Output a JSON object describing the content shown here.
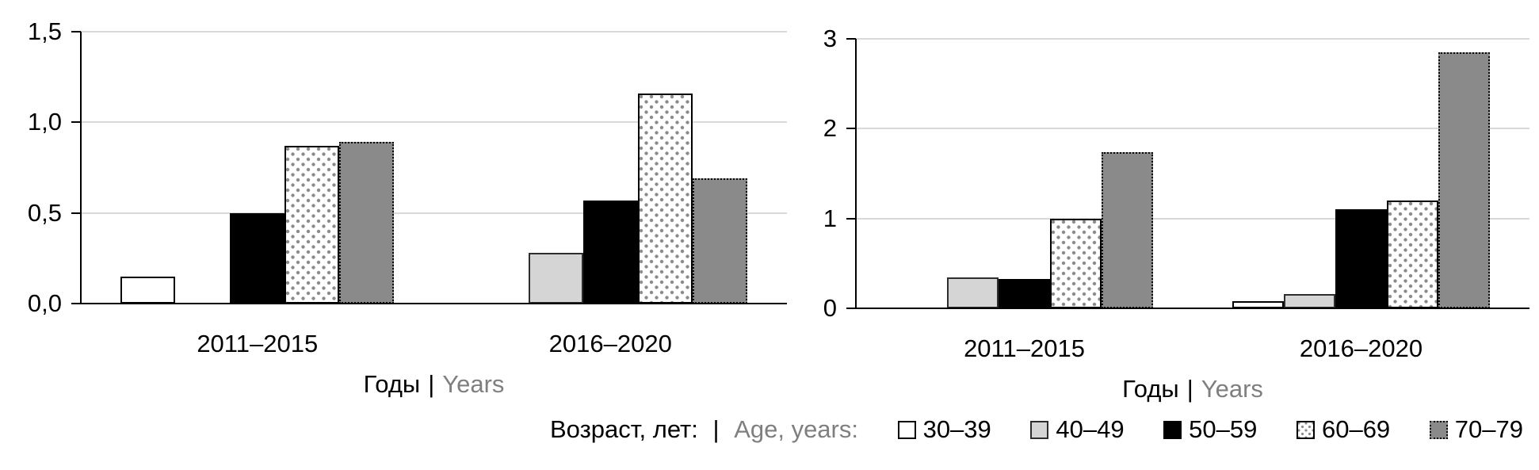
{
  "figure": {
    "background": "#ffffff",
    "colors": {
      "gridline": "#d9d9d9",
      "axis": "#000000",
      "text_primary": "#000000",
      "text_secondary": "#7f7f7f",
      "fill_white": "#ffffff",
      "fill_lightgray": "#d5d5d5",
      "fill_black": "#000000",
      "fill_dotted_dot": "#8a8a8a",
      "fill_gray": "#8a8a8a"
    }
  },
  "legend": {
    "title_ru": "Возраст, лет:",
    "separator": "|",
    "title_en": "Age, years:",
    "items": [
      {
        "label": "30–39",
        "style": "white"
      },
      {
        "label": "40–49",
        "style": "lightgray"
      },
      {
        "label": "50–59",
        "style": "black"
      },
      {
        "label": "60–69",
        "style": "dotted"
      },
      {
        "label": "70–79",
        "style": "gray"
      }
    ]
  },
  "chart_data": [
    {
      "type": "bar",
      "title": "",
      "categories": [
        "2011–2015",
        "2016–2020"
      ],
      "series": [
        {
          "name": "30–39",
          "style": "white",
          "values": [
            0.15,
            0
          ]
        },
        {
          "name": "40–49",
          "style": "lightgray",
          "values": [
            0,
            0.28
          ]
        },
        {
          "name": "50–59",
          "style": "black",
          "values": [
            0.5,
            0.57
          ]
        },
        {
          "name": "60–69",
          "style": "dotted",
          "values": [
            0.87,
            1.16
          ]
        },
        {
          "name": "70–79",
          "style": "gray",
          "values": [
            0.89,
            0.69
          ]
        }
      ],
      "xlabel_ru": "Годы",
      "xlabel_sep": "|",
      "xlabel_en": "Years",
      "ylim": [
        0,
        1.5
      ],
      "yticks_top_to_bottom": [
        "1,5",
        "1,0",
        "0,5",
        "0,0"
      ],
      "grid": true,
      "legend_position": "shared-bottom"
    },
    {
      "type": "bar",
      "title": "",
      "categories": [
        "2011–2015",
        "2016–2020"
      ],
      "series": [
        {
          "name": "30–39",
          "style": "white",
          "values": [
            0,
            0.08
          ]
        },
        {
          "name": "40–49",
          "style": "lightgray",
          "values": [
            0.34,
            0.16
          ]
        },
        {
          "name": "50–59",
          "style": "black",
          "values": [
            0.33,
            1.1
          ]
        },
        {
          "name": "60–69",
          "style": "dotted",
          "values": [
            1.0,
            1.2
          ]
        },
        {
          "name": "70–79",
          "style": "gray",
          "values": [
            1.74,
            2.85
          ]
        }
      ],
      "xlabel_ru": "Годы",
      "xlabel_sep": "|",
      "xlabel_en": "Years",
      "ylim": [
        0,
        3
      ],
      "yticks_top_to_bottom": [
        "3",
        "2",
        "1",
        "0"
      ],
      "grid": true,
      "legend_position": "shared-bottom"
    }
  ]
}
